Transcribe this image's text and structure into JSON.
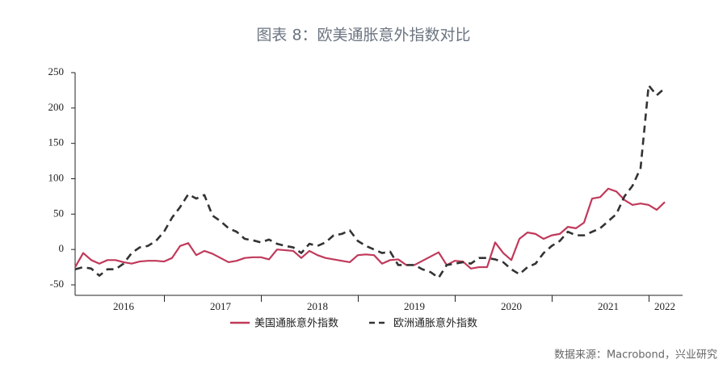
{
  "chart_data": {
    "type": "line",
    "title": "图表 8：欧美通胀意外指数对比",
    "source": "数据来源：Macrobond，兴业研究",
    "categories": [
      null,
      null,
      null,
      null,
      null,
      null,
      "2016",
      null,
      null,
      null,
      null,
      null,
      null,
      null,
      null,
      null,
      null,
      null,
      "2017",
      null,
      null,
      null,
      null,
      null,
      null,
      null,
      null,
      null,
      null,
      null,
      "2018",
      null,
      null,
      null,
      null,
      null,
      null,
      null,
      null,
      null,
      null,
      null,
      "2019",
      null,
      null,
      null,
      null,
      null,
      null,
      null,
      null,
      null,
      null,
      null,
      "2020",
      null,
      null,
      null,
      null,
      null,
      null,
      null,
      null,
      null,
      null,
      null,
      "2021",
      null,
      null,
      null,
      null,
      null,
      null,
      "2022"
    ],
    "series": [
      {
        "name": "美国通胀意外指数",
        "color": "#c0395a",
        "dash": false,
        "values": [
          -25,
          -5,
          -15,
          -20,
          -15,
          -15,
          -18,
          -20,
          -17,
          -16,
          -16,
          -17,
          -12,
          5,
          9,
          -8,
          -2,
          -6,
          -12,
          -18,
          -16,
          -12,
          -11,
          -11,
          -14,
          0,
          -1,
          -2,
          -12,
          -2,
          -8,
          -12,
          -14,
          -16,
          -18,
          -8,
          -7,
          -8,
          -20,
          -15,
          -14,
          -22,
          -22,
          -16,
          -10,
          -4,
          -22,
          -16,
          -17,
          -27,
          -25,
          -25,
          10,
          -5,
          -15,
          15,
          24,
          22,
          15,
          20,
          22,
          32,
          30,
          38,
          72,
          74,
          86,
          82,
          70,
          63,
          65,
          63,
          56,
          67
        ]
      },
      {
        "name": "欧洲通胀意外指数",
        "color": "#333333",
        "dash": true,
        "values": [
          -28,
          -25,
          -27,
          -37,
          -28,
          -28,
          -20,
          -5,
          3,
          5,
          12,
          25,
          45,
          60,
          78,
          72,
          77,
          48,
          40,
          30,
          25,
          15,
          13,
          10,
          14,
          8,
          5,
          3,
          -5,
          8,
          5,
          10,
          20,
          22,
          27,
          12,
          5,
          0,
          -5,
          -3,
          -22,
          -22,
          -22,
          -28,
          -32,
          -40,
          -22,
          -20,
          -18,
          -20,
          -12,
          -12,
          -14,
          -18,
          -28,
          -35,
          -25,
          -20,
          -5,
          5,
          12,
          25,
          20,
          20,
          25,
          30,
          40,
          50,
          75,
          90,
          115,
          232,
          218,
          228
        ]
      }
    ],
    "ylim": [
      -50,
      250
    ],
    "yticks": [
      -50,
      0,
      50,
      100,
      150,
      200,
      250
    ]
  }
}
